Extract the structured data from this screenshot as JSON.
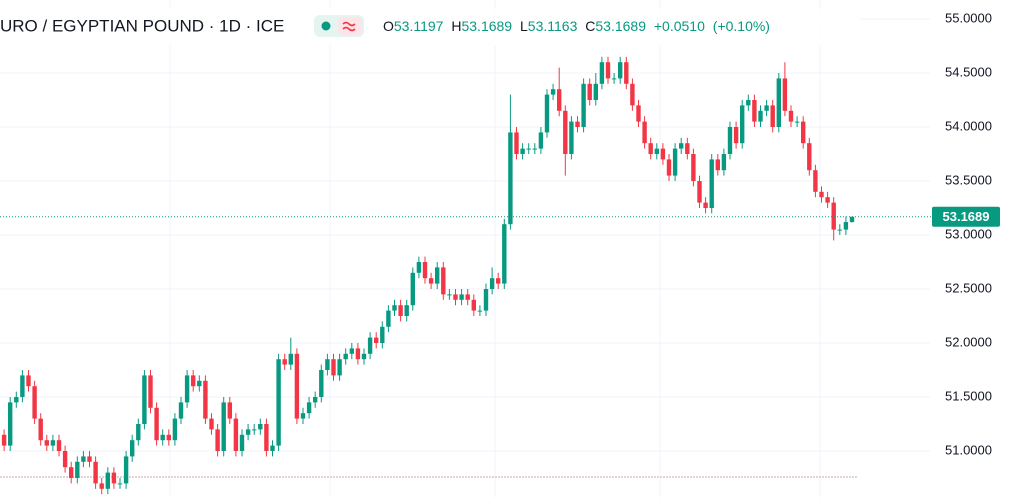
{
  "chart_data": {
    "type": "candlestick",
    "title": "URO / EGYPTIAN POUND · 1D · ICE",
    "legend": {
      "o_label": "O",
      "open": 53.1197,
      "h_label": "H",
      "high": 53.1689,
      "l_label": "L",
      "low": 53.1163,
      "c_label": "C",
      "close": 53.1689,
      "change": {
        "value": 0.051,
        "label": "+0.0510"
      },
      "change_pct": {
        "value": 0.1,
        "label": "(+0.10%)"
      }
    },
    "up_color": "#089981",
    "down_color": "#f23645",
    "ylim": [
      50.574,
      55.176
    ],
    "yticks": [
      {
        "value": 51,
        "label": "51.0000"
      },
      {
        "value": 51.5,
        "label": "51.5000"
      },
      {
        "value": 52,
        "label": "52.0000"
      },
      {
        "value": 52.5,
        "label": "52.5000"
      },
      {
        "value": 53,
        "label": "53.0000"
      },
      {
        "value": 53.5,
        "label": "53.5000"
      },
      {
        "value": 54,
        "label": "54.0000"
      },
      {
        "value": 54.5,
        "label": "54.5000"
      },
      {
        "value": 55,
        "label": "55.0000"
      }
    ],
    "grid": true,
    "open": [
      51.15,
      51.05,
      51.45,
      51.5,
      51.7,
      51.6,
      51.3,
      51.1,
      51.05,
      51.1,
      51.0,
      50.85,
      50.75,
      50.9,
      50.95,
      50.9,
      50.7,
      50.65,
      50.8,
      50.7,
      50.7,
      50.95,
      51.1,
      51.25,
      51.7,
      51.4,
      51.1,
      51.15,
      51.1,
      51.3,
      51.45,
      51.7,
      51.6,
      51.65,
      51.3,
      51.2,
      51.0,
      51.45,
      51.3,
      51.0,
      51.15,
      51.2,
      51.2,
      51.25,
      51.0,
      51.05,
      51.85,
      51.8,
      51.9,
      51.3,
      51.35,
      51.45,
      51.5,
      51.75,
      51.85,
      51.7,
      51.85,
      51.9,
      51.95,
      51.85,
      51.9,
      52.05,
      52.0,
      52.15,
      52.3,
      52.35,
      52.25,
      52.35,
      52.65,
      52.75,
      52.6,
      52.55,
      52.7,
      52.45,
      52.45,
      52.4,
      52.45,
      52.4,
      52.3,
      52.3,
      52.5,
      52.6,
      52.55,
      53.1,
      53.95,
      53.75,
      53.8,
      53.8,
      53.8,
      53.95,
      54.3,
      54.35,
      54.15,
      53.75,
      54.05,
      54.0,
      54.4,
      54.25,
      54.4,
      54.6,
      54.45,
      54.45,
      54.6,
      54.4,
      54.2,
      54.05,
      53.85,
      53.75,
      53.8,
      53.7,
      53.55,
      53.8,
      53.85,
      53.75,
      53.5,
      53.3,
      53.25,
      53.7,
      53.6,
      53.75,
      54.0,
      53.85,
      54.2,
      54.25,
      54.05,
      54.15,
      54.2,
      54.0,
      54.45,
      54.15,
      54.05,
      54.05,
      53.85,
      53.6,
      53.4,
      53.35,
      53.3,
      53.05,
      53.05,
      53.1197
    ],
    "high": [
      51.2,
      51.5,
      51.55,
      51.75,
      51.75,
      51.65,
      51.35,
      51.15,
      51.15,
      51.15,
      51.05,
      50.9,
      50.95,
      51.0,
      51.0,
      50.95,
      50.75,
      50.85,
      50.85,
      50.75,
      51.0,
      51.15,
      51.3,
      51.75,
      51.75,
      51.45,
      51.2,
      51.2,
      51.35,
      51.5,
      51.75,
      51.75,
      51.7,
      51.7,
      51.35,
      51.25,
      51.5,
      51.5,
      51.35,
      51.2,
      51.25,
      51.25,
      51.3,
      51.3,
      51.1,
      51.9,
      51.9,
      52.05,
      51.95,
      51.4,
      51.5,
      51.55,
      51.8,
      51.9,
      51.9,
      51.9,
      51.95,
      52.0,
      52.0,
      51.95,
      52.1,
      52.1,
      52.2,
      52.35,
      52.4,
      52.4,
      52.4,
      52.7,
      52.8,
      52.8,
      52.65,
      52.75,
      52.75,
      52.5,
      52.5,
      52.5,
      52.5,
      52.45,
      52.35,
      52.55,
      52.7,
      52.65,
      53.15,
      54.3,
      54.0,
      53.85,
      53.85,
      53.85,
      54.0,
      54.35,
      54.4,
      54.55,
      54.2,
      54.1,
      54.1,
      54.45,
      54.45,
      54.5,
      54.65,
      54.65,
      54.5,
      54.65,
      54.65,
      54.45,
      54.25,
      54.1,
      53.9,
      53.85,
      53.85,
      53.75,
      53.85,
      53.9,
      53.9,
      53.8,
      53.55,
      53.35,
      53.75,
      53.75,
      53.8,
      54.05,
      54.05,
      54.25,
      54.3,
      54.3,
      54.2,
      54.25,
      54.25,
      54.5,
      54.6,
      54.2,
      54.1,
      54.1,
      53.9,
      53.65,
      53.45,
      53.4,
      53.35,
      53.1,
      53.17,
      53.1689
    ],
    "low": [
      51.0,
      51.0,
      51.4,
      51.45,
      51.55,
      51.25,
      51.05,
      51.0,
      51.0,
      50.95,
      50.8,
      50.7,
      50.7,
      50.85,
      50.85,
      50.65,
      50.6,
      50.6,
      50.65,
      50.65,
      50.65,
      50.9,
      51.05,
      51.2,
      51.35,
      51.05,
      51.05,
      51.05,
      51.05,
      51.25,
      51.4,
      51.55,
      51.55,
      51.25,
      51.15,
      50.95,
      50.95,
      51.25,
      50.95,
      50.95,
      51.1,
      51.15,
      51.15,
      50.95,
      50.95,
      51.0,
      51.75,
      51.75,
      51.25,
      51.25,
      51.3,
      51.4,
      51.45,
      51.7,
      51.65,
      51.65,
      51.8,
      51.85,
      51.8,
      51.8,
      51.85,
      51.95,
      51.95,
      52.1,
      52.25,
      52.2,
      52.2,
      52.3,
      52.6,
      52.55,
      52.5,
      52.5,
      52.4,
      52.4,
      52.35,
      52.35,
      52.35,
      52.25,
      52.25,
      52.25,
      52.45,
      52.5,
      52.5,
      53.05,
      53.7,
      53.7,
      53.75,
      53.75,
      53.75,
      53.9,
      54.25,
      54.1,
      53.55,
      53.7,
      53.95,
      53.95,
      54.2,
      54.2,
      54.35,
      54.4,
      54.4,
      54.4,
      54.35,
      54.15,
      54.0,
      53.8,
      53.7,
      53.7,
      53.65,
      53.5,
      53.5,
      53.75,
      53.7,
      53.45,
      53.25,
      53.2,
      53.2,
      53.55,
      53.55,
      53.7,
      53.8,
      53.8,
      54.15,
      54.0,
      54.0,
      54.1,
      53.95,
      53.95,
      54.1,
      54.0,
      54.0,
      53.8,
      53.55,
      53.35,
      53.3,
      53.25,
      52.95,
      53.0,
      53.0,
      53.1163
    ],
    "close": [
      51.05,
      51.45,
      51.5,
      51.7,
      51.6,
      51.3,
      51.1,
      51.05,
      51.1,
      51.0,
      50.85,
      50.75,
      50.9,
      50.95,
      50.9,
      50.7,
      50.65,
      50.8,
      50.7,
      50.7,
      50.95,
      51.1,
      51.25,
      51.7,
      51.4,
      51.1,
      51.15,
      51.1,
      51.3,
      51.45,
      51.7,
      51.6,
      51.65,
      51.3,
      51.2,
      51.0,
      51.45,
      51.3,
      51.0,
      51.15,
      51.2,
      51.2,
      51.25,
      51.0,
      51.05,
      51.85,
      51.8,
      51.9,
      51.3,
      51.35,
      51.45,
      51.5,
      51.75,
      51.85,
      51.7,
      51.85,
      51.9,
      51.95,
      51.85,
      51.9,
      52.05,
      52.0,
      52.15,
      52.3,
      52.35,
      52.25,
      52.35,
      52.65,
      52.75,
      52.6,
      52.55,
      52.7,
      52.45,
      52.45,
      52.4,
      52.45,
      52.4,
      52.3,
      52.3,
      52.5,
      52.6,
      52.55,
      53.1,
      53.95,
      53.75,
      53.8,
      53.8,
      53.8,
      53.95,
      54.3,
      54.35,
      54.15,
      53.75,
      54.05,
      54.0,
      54.4,
      54.25,
      54.4,
      54.6,
      54.45,
      54.45,
      54.6,
      54.4,
      54.2,
      54.05,
      53.85,
      53.75,
      53.8,
      53.7,
      53.55,
      53.8,
      53.85,
      53.75,
      53.5,
      53.3,
      53.25,
      53.7,
      53.6,
      53.75,
      54.0,
      53.85,
      54.2,
      54.25,
      54.05,
      54.15,
      54.2,
      54.0,
      54.45,
      54.15,
      54.05,
      54.05,
      53.85,
      53.6,
      53.4,
      53.35,
      53.3,
      53.05,
      53.05,
      53.12,
      53.1689
    ]
  }
}
